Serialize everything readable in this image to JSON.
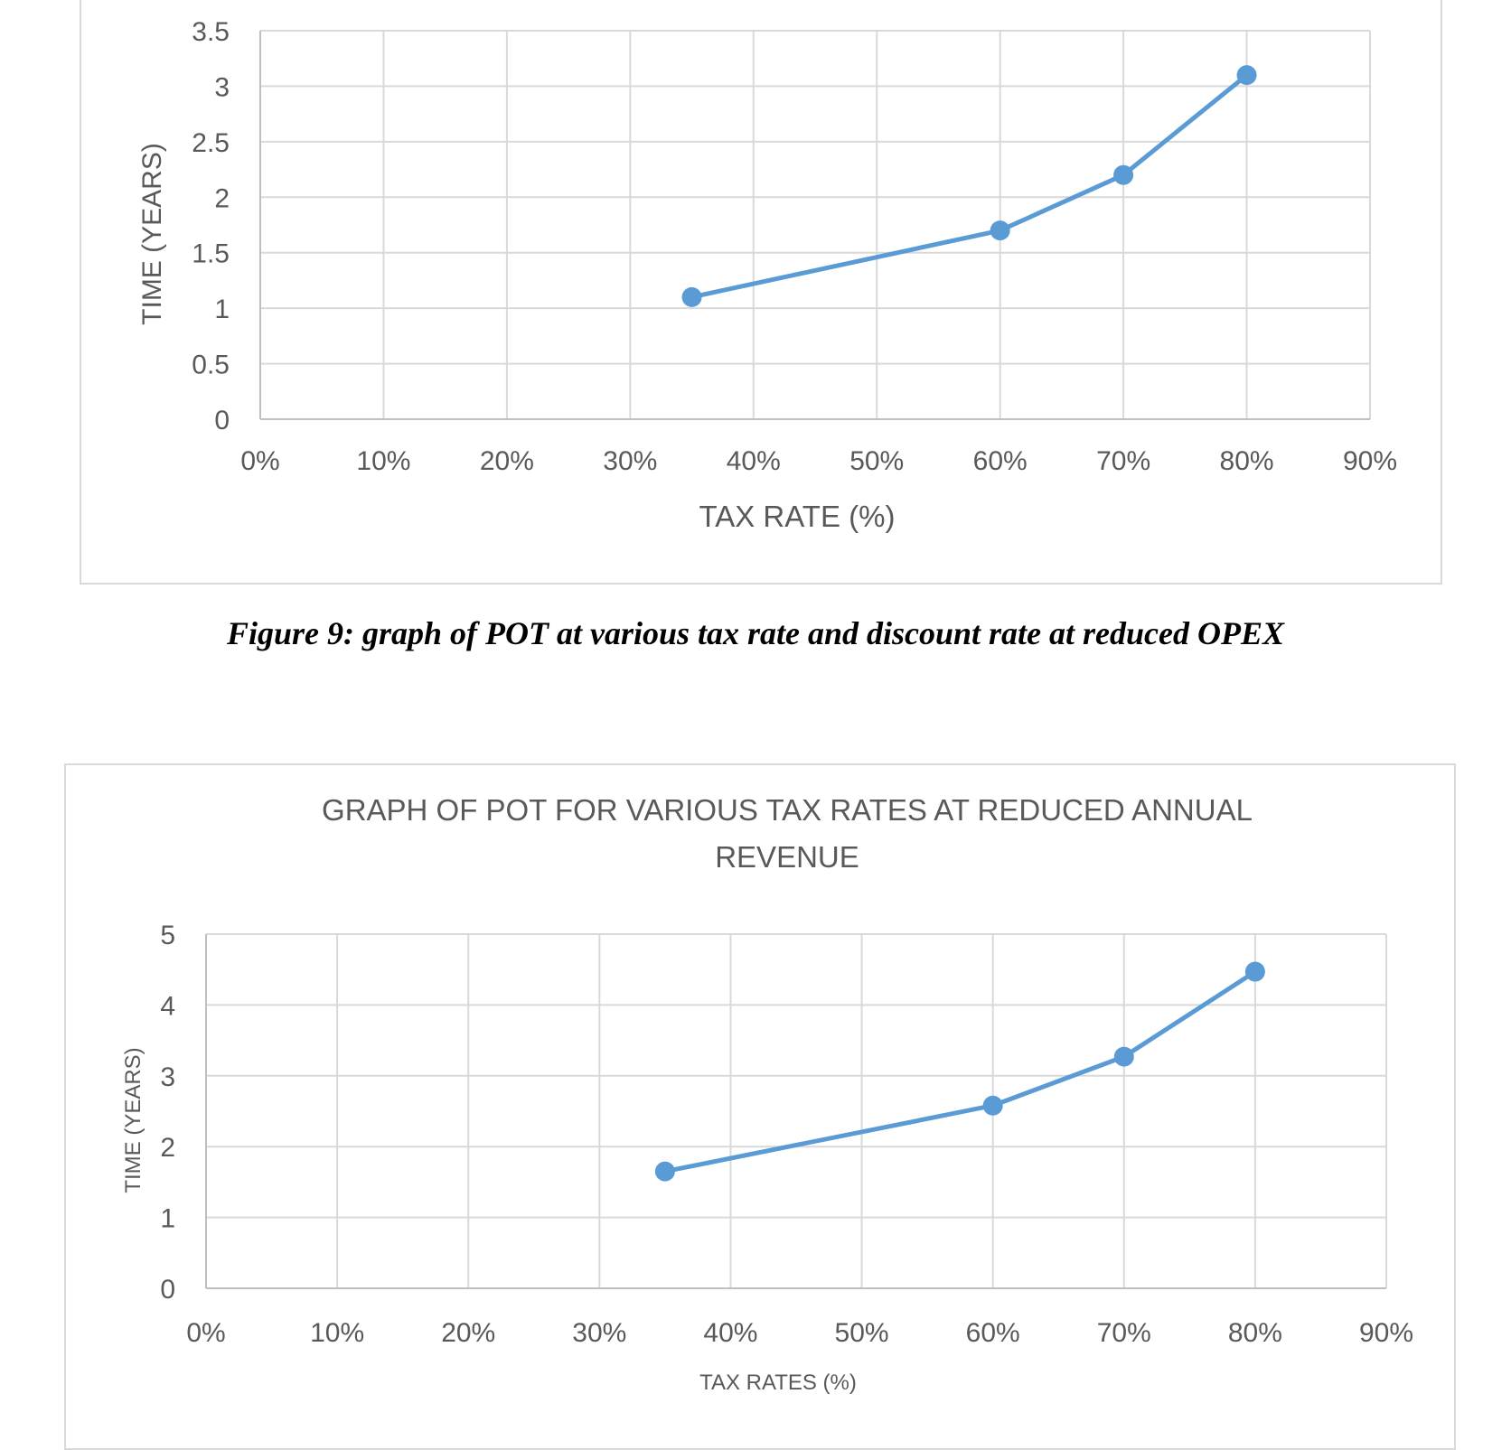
{
  "chart_data": [
    {
      "type": "line",
      "title": "",
      "xlabel": "TAX RATE (%)",
      "ylabel": "TIME (YEARS)",
      "categories": [
        "0%",
        "10%",
        "20%",
        "30%",
        "40%",
        "50%",
        "60%",
        "70%",
        "80%",
        "90%"
      ],
      "y_ticks": [
        "0",
        "0.5",
        "1",
        "1.5",
        "2",
        "2.5",
        "3",
        "3.5"
      ],
      "ylim": [
        0,
        3.5
      ],
      "grid": true,
      "legend": "none",
      "series": [
        {
          "x": [
            35,
            60,
            70,
            80
          ],
          "y": [
            1.1,
            1.7,
            2.2,
            3.1
          ]
        }
      ],
      "color": "#5b9bd5"
    },
    {
      "type": "line",
      "title": "GRAPH OF POT FOR VARIOUS TAX RATES AT REDUCED ANNUAL REVENUE",
      "xlabel": "TAX RATES (%)",
      "ylabel": "TIME (YEARS)",
      "categories": [
        "0%",
        "10%",
        "20%",
        "30%",
        "40%",
        "50%",
        "60%",
        "70%",
        "80%",
        "90%"
      ],
      "y_ticks": [
        "0",
        "1",
        "2",
        "3",
        "4",
        "5"
      ],
      "ylim": [
        0,
        5
      ],
      "grid": true,
      "legend": "none",
      "series": [
        {
          "x": [
            35,
            60,
            70,
            80
          ],
          "y": [
            1.65,
            2.58,
            3.27,
            4.47
          ]
        }
      ],
      "color": "#5b9bd5"
    }
  ],
  "caption": "Figure 9: graph of POT at various tax rate and discount rate at reduced OPEX"
}
